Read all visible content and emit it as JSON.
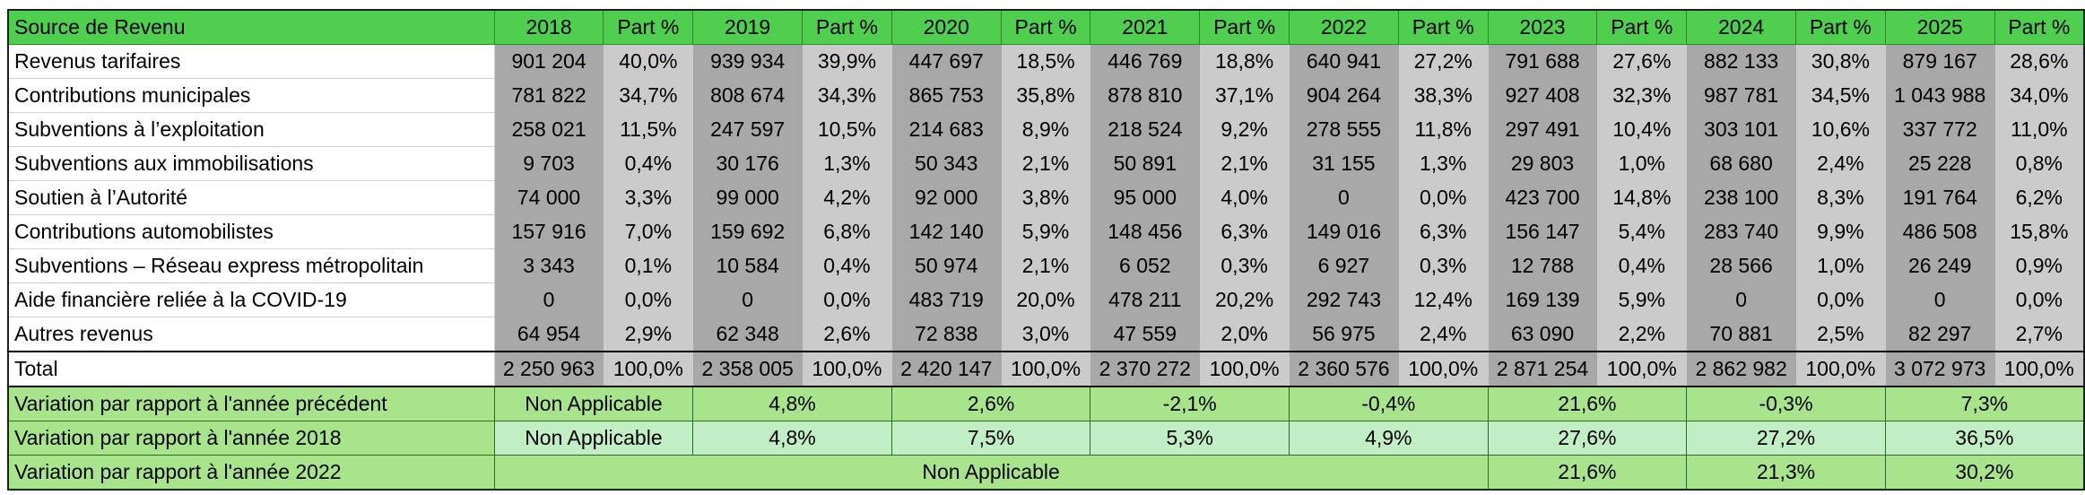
{
  "header": {
    "label": "Source de Revenu",
    "years": [
      "2018",
      "2019",
      "2020",
      "2021",
      "2022",
      "2023",
      "2024",
      "2025"
    ],
    "share_label": "Part %"
  },
  "rows": [
    {
      "label": "Revenus tarifaires",
      "values": [
        "901 204",
        "939 934",
        "447 697",
        "446 769",
        "640 941",
        "791 688",
        "882 133",
        "879 167"
      ],
      "shares": [
        "40,0%",
        "39,9%",
        "18,5%",
        "18,8%",
        "27,2%",
        "27,6%",
        "30,8%",
        "28,6%"
      ]
    },
    {
      "label": "Contributions municipales",
      "values": [
        "781 822",
        "808 674",
        "865 753",
        "878 810",
        "904 264",
        "927 408",
        "987 781",
        "1 043 988"
      ],
      "shares": [
        "34,7%",
        "34,3%",
        "35,8%",
        "37,1%",
        "38,3%",
        "32,3%",
        "34,5%",
        "34,0%"
      ]
    },
    {
      "label": "Subventions à l’exploitation",
      "values": [
        "258 021",
        "247 597",
        "214 683",
        "218 524",
        "278 555",
        "297 491",
        "303 101",
        "337 772"
      ],
      "shares": [
        "11,5%",
        "10,5%",
        "8,9%",
        "9,2%",
        "11,8%",
        "10,4%",
        "10,6%",
        "11,0%"
      ]
    },
    {
      "label": "Subventions aux immobilisations",
      "values": [
        "9 703",
        "30 176",
        "50 343",
        "50 891",
        "31 155",
        "29 803",
        "68 680",
        "25 228"
      ],
      "shares": [
        "0,4%",
        "1,3%",
        "2,1%",
        "2,1%",
        "1,3%",
        "1,0%",
        "2,4%",
        "0,8%"
      ]
    },
    {
      "label": "Soutien à l’Autorité",
      "values": [
        "74 000",
        "99 000",
        "92 000",
        "95 000",
        "0",
        "423 700",
        "238 100",
        "191 764"
      ],
      "shares": [
        "3,3%",
        "4,2%",
        "3,8%",
        "4,0%",
        "0,0%",
        "14,8%",
        "8,3%",
        "6,2%"
      ]
    },
    {
      "label": "Contributions automobilistes",
      "values": [
        "157 916",
        "159 692",
        "142 140",
        "148 456",
        "149 016",
        "156 147",
        "283 740",
        "486 508"
      ],
      "shares": [
        "7,0%",
        "6,8%",
        "5,9%",
        "6,3%",
        "6,3%",
        "5,4%",
        "9,9%",
        "15,8%"
      ]
    },
    {
      "label": "Subventions – Réseau express métropolitain",
      "values": [
        "3 343",
        "10 584",
        "50 974",
        "6 052",
        "6 927",
        "12 788",
        "28 566",
        "26 249"
      ],
      "shares": [
        "0,1%",
        "0,4%",
        "2,1%",
        "0,3%",
        "0,3%",
        "0,4%",
        "1,0%",
        "0,9%"
      ]
    },
    {
      "label": "Aide financière reliée à la COVID-19",
      "values": [
        "0",
        "0",
        "483 719",
        "478 211",
        "292 743",
        "169 139",
        "0",
        "0"
      ],
      "shares": [
        "0,0%",
        "0,0%",
        "20,0%",
        "20,2%",
        "12,4%",
        "5,9%",
        "0,0%",
        "0,0%"
      ]
    },
    {
      "label": "Autres revenus",
      "values": [
        "64 954",
        "62 348",
        "72 838",
        "47 559",
        "56 975",
        "63 090",
        "70 881",
        "82 297"
      ],
      "shares": [
        "2,9%",
        "2,6%",
        "3,0%",
        "2,0%",
        "2,4%",
        "2,2%",
        "2,5%",
        "2,7%"
      ]
    }
  ],
  "total": {
    "label": "Total",
    "values": [
      "2 250 963",
      "2 358 005",
      "2 420 147",
      "2 370 272",
      "2 360 576",
      "2 871 254",
      "2 862 982",
      "3 072 973"
    ],
    "shares": [
      "100,0%",
      "100,0%",
      "100,0%",
      "100,0%",
      "100,0%",
      "100,0%",
      "100,0%",
      "100,0%"
    ]
  },
  "variations": [
    {
      "label": "Variation par rapport à l'année précédent",
      "values": [
        "Non Applicable",
        "4,8%",
        "2,6%",
        "-2,1%",
        "-0,4%",
        "21,6%",
        "-0,3%",
        "7,3%"
      ]
    },
    {
      "label": "Variation par rapport à l'année 2018",
      "values": [
        "Non Applicable",
        "4,8%",
        "7,5%",
        "5,3%",
        "4,9%",
        "27,6%",
        "27,2%",
        "36,5%"
      ]
    },
    {
      "label": "Variation par rapport à l'année 2022",
      "na": "Non Applicable",
      "values": [
        "21,6%",
        "21,3%",
        "30,2%"
      ]
    }
  ]
}
